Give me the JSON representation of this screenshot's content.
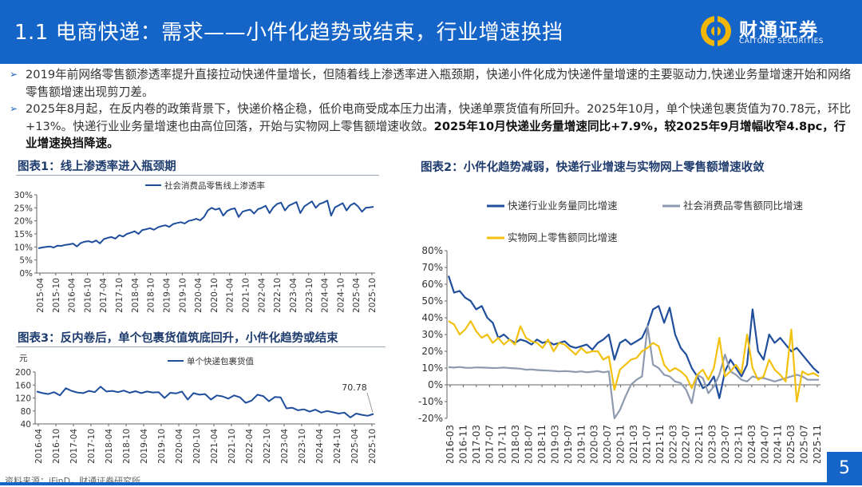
{
  "header": {
    "title": "1.1 电商快递：需求——小件化趋势或结束，行业增速换挡",
    "logo_cn": "财通证券",
    "logo_en": "CAITONG SECURITIES"
  },
  "bullets": [
    {
      "text": "2019年前网络零售额渗透率提升直接拉动快递件量增长，但随着线上渗透率进入瓶颈期，快递小件化成为快递件量增速的主要驱动力,快递业务量增速开始和网络零售额增速出现剪刀差。",
      "bold": ""
    },
    {
      "text": "2025年8月起，在反内卷的政策背景下，快递价格企稳，低价电商受成本压力出清，快递单票货值有所回升。2025年10月，单个快递包裹货值为70.78元，环比+13%。快递行业业务量增速也由高位回落，开始与实物网上零售额增速收敛。",
      "bold": "2025年10月快递业务量增速同比+7.9%，较2025年9月增幅收窄4.8pc，行业增速换挡降速。"
    }
  ],
  "charts": {
    "chart1_title": "图表1：线上渗透率进入瓶颈期",
    "chart2_title": "图表2：小件化趋势减弱，快递行业增速与实物网上零售额增速收敛",
    "chart3_title": "图表3：反内卷后，单个包裹货值筑底回升，小件化趋势或结束"
  },
  "chart_data": [
    {
      "type": "line",
      "title": "图表1：线上渗透率进入瓶颈期",
      "legend": [
        "社会消费品零售线上渗透率"
      ],
      "yticks": [
        "30%",
        "25%",
        "20%",
        "15%",
        "10%",
        "5%",
        "0%"
      ],
      "ylim": [
        0,
        30
      ],
      "xticks": [
        "2015-04",
        "2015-10",
        "2016-04",
        "2016-10",
        "2017-04",
        "2017-10",
        "2018-04",
        "2018-10",
        "2019-04",
        "2019-10",
        "2020-04",
        "2020-10",
        "2021-04",
        "2021-10",
        "2022-04",
        "2022-10",
        "2023-04",
        "2023-10",
        "2024-04",
        "2024-10",
        "2025-04",
        "2025-10"
      ],
      "series": [
        {
          "name": "社会消费品零售线上渗透率",
          "color": "#1f4e9c",
          "values": [
            9.5,
            9.8,
            10,
            10.2,
            9.8,
            10.5,
            10.4,
            10.8,
            11,
            11.3,
            10.2,
            11.5,
            12,
            12.2,
            11.8,
            12.5,
            11.4,
            13,
            13.5,
            13.8,
            13.2,
            14.5,
            14,
            15,
            15.5,
            16,
            15,
            16.5,
            16.8,
            17.2,
            16.6,
            17.5,
            18,
            18.3,
            17.7,
            18.8,
            19.2,
            19.5,
            19,
            20,
            20.3,
            20.8,
            20.2,
            21.5,
            24,
            25,
            24.3,
            24.8,
            22,
            23.8,
            24.5,
            24.8,
            21.5,
            23.5,
            24,
            24.3,
            22.8,
            24.5,
            25,
            25.8,
            23,
            25.2,
            26.5,
            27,
            24,
            25.8,
            26.5,
            27.2,
            23,
            25.5,
            26.5,
            27.5,
            25,
            26.5,
            27,
            27.8,
            22,
            25.2,
            26,
            26.8,
            24,
            26,
            26.8,
            25.5,
            23.5,
            25,
            25.2,
            25.4
          ]
        }
      ]
    },
    {
      "type": "line",
      "title": "图表2：小件化趋势减弱，快递行业增速与实物网上零售额增速收敛",
      "legend": [
        "快递行业业务量同比增速",
        "社会消费品零售额同比增速",
        "实物网上零售额同比增速"
      ],
      "yticks": [
        "80%",
        "70%",
        "60%",
        "50%",
        "40%",
        "30%",
        "20%",
        "10%",
        "0%",
        "-10%",
        "-20%"
      ],
      "ylim": [
        -20,
        80
      ],
      "xticks": [
        "2016-03",
        "2016-11",
        "2017-03",
        "2017-07",
        "2017-11",
        "2018-03",
        "2018-07",
        "2018-11",
        "2019-03",
        "2019-07",
        "2019-11",
        "2020-03",
        "2020-07",
        "2020-11",
        "2021-03",
        "2021-07",
        "2021-11",
        "2022-03",
        "2022-07",
        "2022-11",
        "2023-03",
        "2023-07",
        "2023-11",
        "2024-03",
        "2024-07",
        "2024-11",
        "2025-03",
        "2025-07",
        "2025-11"
      ],
      "series": [
        {
          "name": "快递行业业务量同比增速",
          "color": "#1f4e9c",
          "values": [
            65,
            55,
            56,
            52,
            50,
            45,
            47,
            40,
            37,
            28,
            30,
            27,
            25,
            27,
            26,
            24,
            27,
            25,
            26,
            24,
            25,
            26,
            23,
            22,
            23,
            24,
            21,
            25,
            27,
            30,
            15,
            25,
            27,
            24,
            26,
            28,
            35,
            45,
            47,
            37,
            46,
            30,
            22,
            18,
            10,
            5,
            -2,
            0,
            5,
            -8,
            8,
            15,
            10,
            5,
            12,
            45,
            20,
            15,
            30,
            25,
            28,
            24,
            20,
            22,
            18,
            14,
            10,
            7
          ]
        },
        {
          "name": "社会消费品零售额同比增速",
          "color": "#8e9aaf",
          "values": [
            10.5,
            10.3,
            10.6,
            10.2,
            10.1,
            10.4,
            10.3,
            10.2,
            10.0,
            10.1,
            10.3,
            10.0,
            9.8,
            9.6,
            9.0,
            9.2,
            8.8,
            8.6,
            8.5,
            8.3,
            8.0,
            8.2,
            8.0,
            7.6,
            8.0,
            7.5,
            7.8,
            8.2,
            7.5,
            8.0,
            -20,
            -15,
            -7,
            0,
            3,
            5,
            35,
            12,
            10,
            6,
            5,
            2,
            1,
            -3,
            -11,
            6,
            4,
            -5,
            -1,
            6,
            18,
            8,
            6,
            3,
            2,
            5,
            4,
            4,
            3,
            2,
            3,
            4,
            5,
            6,
            5,
            3,
            3,
            3
          ]
        },
        {
          "name": "实物网上零售额同比增速",
          "color": "#f2c10f",
          "values": [
            38,
            36,
            30,
            33,
            38,
            32,
            28,
            30,
            25,
            28,
            24,
            27,
            24,
            35,
            28,
            26,
            25,
            22,
            27,
            20,
            25,
            24,
            21,
            18,
            22,
            19,
            20,
            20,
            15,
            17,
            -3,
            9,
            12,
            15,
            16,
            20,
            22,
            25,
            23,
            12,
            8,
            10,
            8,
            5,
            -2,
            6,
            9,
            3,
            10,
            28,
            5,
            8,
            12,
            7,
            30,
            10,
            3,
            5,
            15,
            9,
            6,
            2,
            33,
            -10,
            8,
            6,
            7,
            5
          ]
        }
      ]
    },
    {
      "type": "line",
      "title": "图表3：反内卷后，单个包裹货值筑底回升，小件化趋势或结束",
      "legend": [
        "单个快递包裹货值"
      ],
      "yunit": "元",
      "yticks": [
        "200",
        "160",
        "120",
        "80",
        "40"
      ],
      "ylim": [
        40,
        200
      ],
      "xticks": [
        "2016-04",
        "2016-10",
        "2017-04",
        "2017-10",
        "2018-04",
        "2018-10",
        "2019-04",
        "2019-10",
        "2020-04",
        "2020-10",
        "2021-04",
        "2021-10",
        "2022-04",
        "2022-10",
        "2023-04",
        "2023-10",
        "2024-04",
        "2024-10",
        "2025-04",
        "2025-10"
      ],
      "annotation": "70.78",
      "series": [
        {
          "name": "单个快递包裹货值",
          "color": "#1f4e9c",
          "values": [
            140,
            135,
            132,
            138,
            128,
            150,
            142,
            137,
            135,
            142,
            138,
            155,
            140,
            142,
            138,
            143,
            136,
            141,
            135,
            140,
            137,
            138,
            120,
            136,
            134,
            140,
            115,
            135,
            130,
            132,
            115,
            128,
            125,
            118,
            128,
            122,
            105,
            112,
            130,
            126,
            110,
            123,
            122,
            88,
            90,
            82,
            85,
            78,
            84,
            75,
            80,
            76,
            72,
            75,
            60,
            72,
            68,
            65,
            70.78
          ]
        }
      ]
    }
  ],
  "footer": {
    "source": "资料来源：iFinD，财通证券研究所",
    "page": "5"
  }
}
